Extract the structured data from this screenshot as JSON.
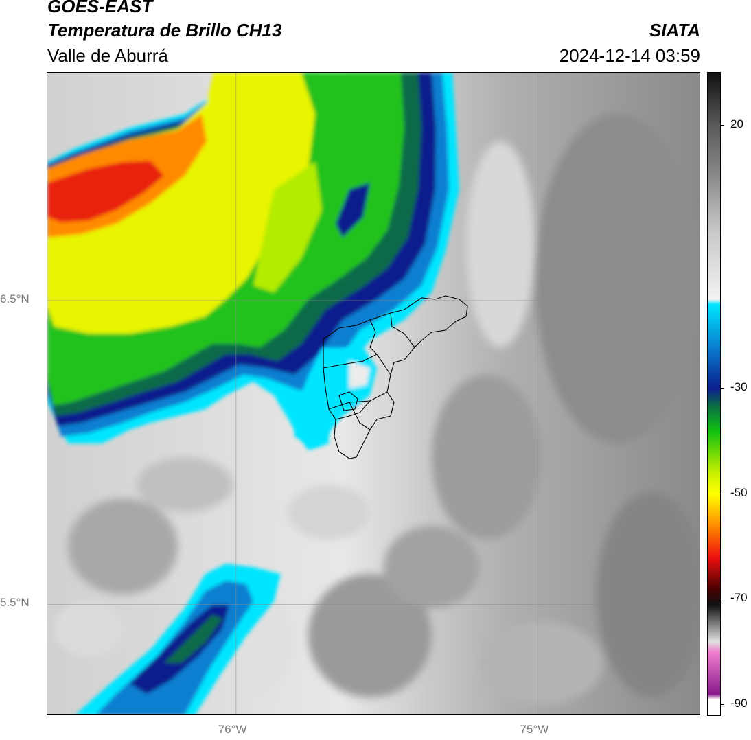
{
  "header": {
    "satellite": "GOES-EAST",
    "product": "Temperatura de Brillo CH13",
    "region": "Valle de Aburrá",
    "organization": "SIATA",
    "datetime": "2024-12-14 03:59"
  },
  "map": {
    "lon_ticks": [
      {
        "value": -76,
        "label": "76°W"
      },
      {
        "value": -75,
        "label": "75°W"
      }
    ],
    "lat_ticks": [
      {
        "value": 6.5,
        "label": "6.5°N"
      },
      {
        "value": 5.5,
        "label": "5.5°N"
      }
    ],
    "extent_lon": [
      -76.625,
      -74.46
    ],
    "extent_lat": [
      5.135,
      7.25
    ]
  },
  "colorbar": {
    "unit_range": [
      -92,
      30
    ],
    "ticks": [
      {
        "value": 20,
        "label": "20"
      },
      {
        "value": -30,
        "label": "-30"
      },
      {
        "value": -50,
        "label": "-50"
      },
      {
        "value": -70,
        "label": "-70"
      },
      {
        "value": -90,
        "label": "-90"
      }
    ],
    "stops": [
      {
        "value": 30,
        "color": "#111111"
      },
      {
        "value": 20,
        "color": "#5a5a5a"
      },
      {
        "value": 10,
        "color": "#8c8c8c"
      },
      {
        "value": 0,
        "color": "#c8c8c8"
      },
      {
        "value": -13,
        "color": "#f2f2f2"
      },
      {
        "value": -14,
        "color": "#00e5ff"
      },
      {
        "value": -22,
        "color": "#0a7fd0"
      },
      {
        "value": -30,
        "color": "#0b1f8c"
      },
      {
        "value": -33,
        "color": "#0a6a4a"
      },
      {
        "value": -38,
        "color": "#10c010"
      },
      {
        "value": -46,
        "color": "#c8f000"
      },
      {
        "value": -50,
        "color": "#ffff00"
      },
      {
        "value": -56,
        "color": "#ff8c00"
      },
      {
        "value": -62,
        "color": "#ee1010"
      },
      {
        "value": -68,
        "color": "#4a0000"
      },
      {
        "value": -71,
        "color": "#111111"
      },
      {
        "value": -78,
        "color": "#e0e0e0"
      },
      {
        "value": -80,
        "color": "#f080d0"
      },
      {
        "value": -88,
        "color": "#8a1a8a"
      },
      {
        "value": -89,
        "color": "#ffffff"
      }
    ]
  },
  "palette": {
    "cloud_cold": "#ff8a00",
    "cloud_red": "#e82010",
    "cloud_yellow": "#ffff00",
    "cloud_green": "#22c21e",
    "cloud_darkgreen": "#0d6b4a",
    "cloud_navy": "#0b1f8c",
    "cloud_blue": "#0a7fd0",
    "cloud_cyan": "#00e5ff",
    "clear_light": "#e6e6e6",
    "clear_mid": "#bdbdbd",
    "clear_dark": "#8e8e8e"
  }
}
